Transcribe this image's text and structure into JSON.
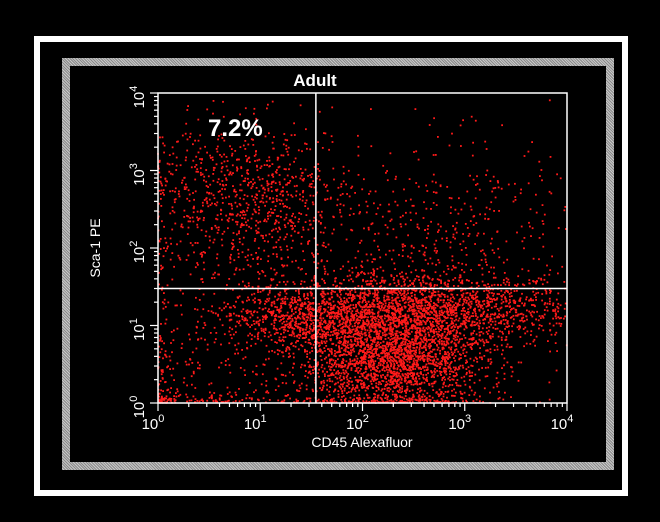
{
  "chart_data": {
    "type": "scatter",
    "title": "Adult",
    "xlabel": "CD45 Alexafluor",
    "ylabel": "Sca-1 PE",
    "x_scale": "log",
    "y_scale": "log",
    "xlim": [
      1,
      10000
    ],
    "ylim": [
      1,
      10000
    ],
    "x_ticks": [
      {
        "base": "10",
        "exp": "0"
      },
      {
        "base": "10",
        "exp": "1"
      },
      {
        "base": "10",
        "exp": "2"
      },
      {
        "base": "10",
        "exp": "3"
      },
      {
        "base": "10",
        "exp": "4"
      }
    ],
    "y_ticks": [
      {
        "base": "10",
        "exp": "0"
      },
      {
        "base": "10",
        "exp": "1"
      },
      {
        "base": "10",
        "exp": "2"
      },
      {
        "base": "10",
        "exp": "3"
      },
      {
        "base": "10",
        "exp": "4"
      }
    ],
    "quadrant_gates": {
      "x": 35,
      "y": 30
    },
    "annotations": [
      {
        "text": "7.2%",
        "quadrant": "upper-left"
      }
    ],
    "point_color": "#ff1a1a",
    "grid": false,
    "populations": [
      {
        "cx": 2.5,
        "cy": 1.2,
        "sx": 0.8,
        "sy": 0.25,
        "weight": 0.3
      },
      {
        "cx": 1.4,
        "cy": 1.1,
        "sx": 0.35,
        "sy": 0.2,
        "weight": 0.08
      },
      {
        "cx": 2.3,
        "cy": 0.55,
        "sx": 0.45,
        "sy": 0.35,
        "weight": 0.35
      },
      {
        "cx": 0.9,
        "cy": 2.6,
        "sx": 0.55,
        "sy": 0.5,
        "weight": 0.14
      },
      {
        "cx": 2.8,
        "cy": 2.0,
        "sx": 0.7,
        "sy": 0.7,
        "weight": 0.08
      },
      {
        "cx": 0.5,
        "cy": 0.4,
        "sx": 0.6,
        "sy": 0.6,
        "weight": 0.05
      }
    ]
  }
}
